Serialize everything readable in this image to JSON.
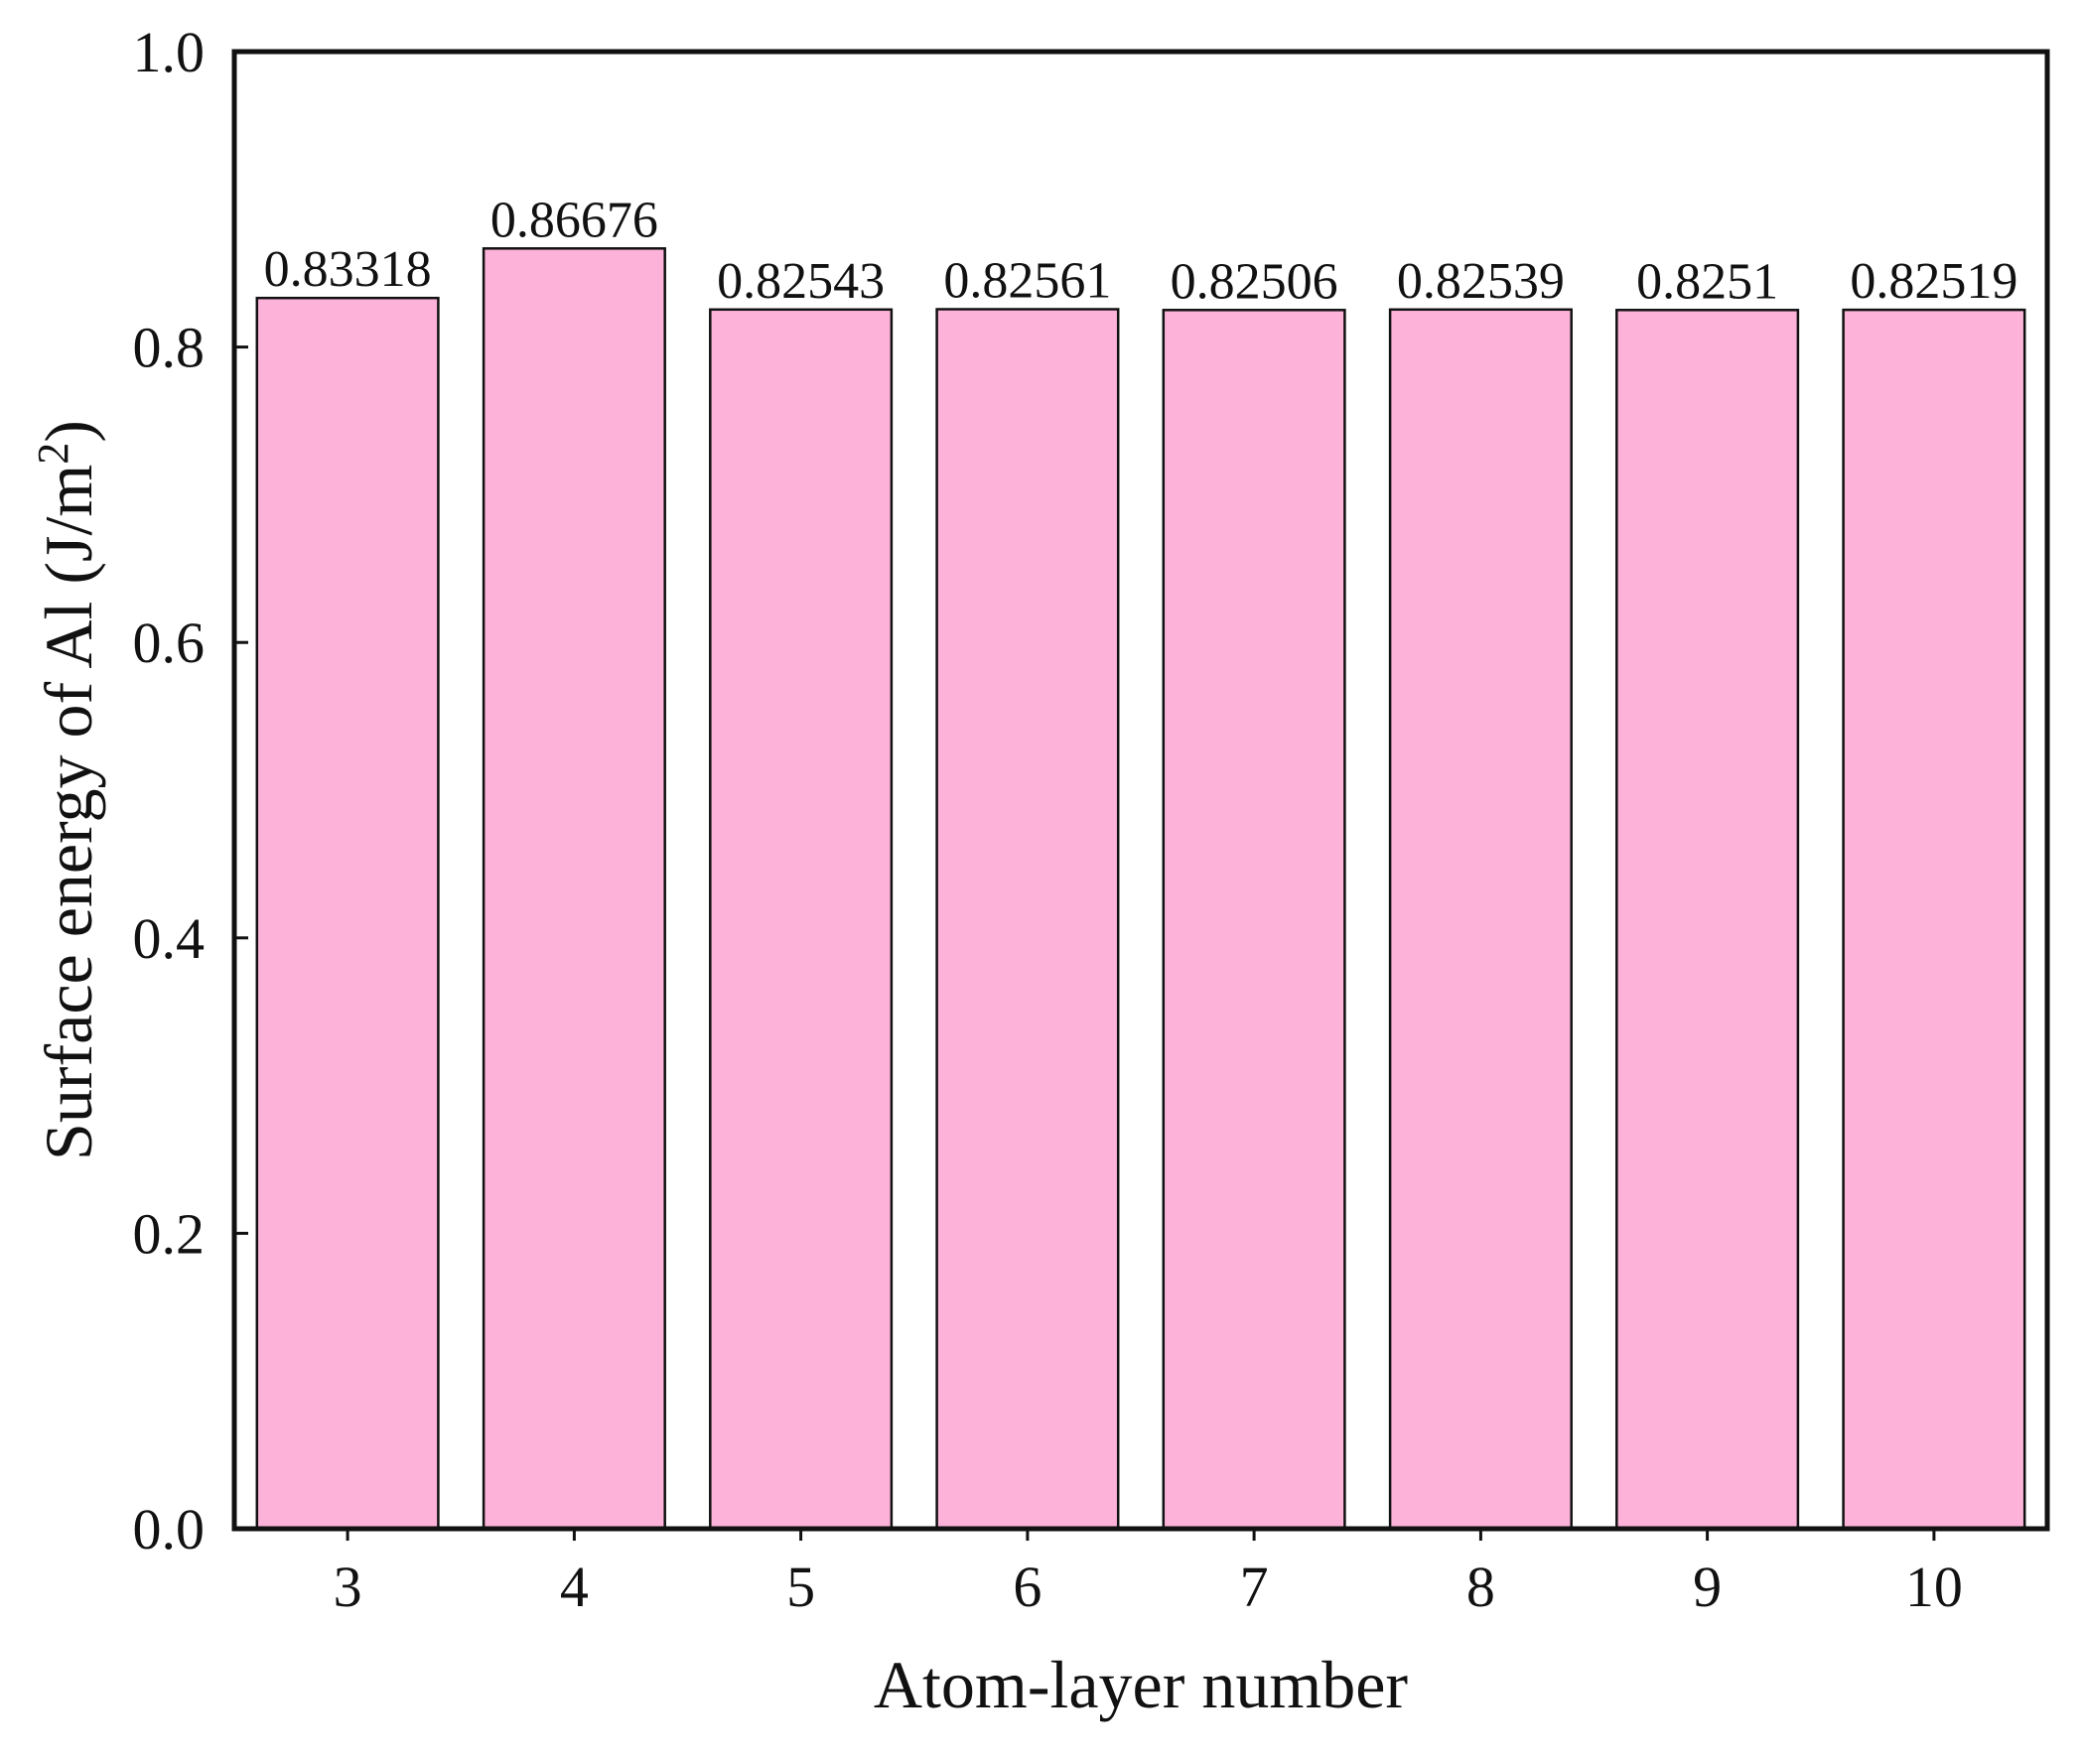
{
  "chart_data": {
    "type": "bar",
    "categories": [
      "3",
      "4",
      "5",
      "6",
      "7",
      "8",
      "9",
      "10"
    ],
    "values": [
      0.83318,
      0.86676,
      0.82543,
      0.82561,
      0.82506,
      0.82539,
      0.8251,
      0.82519
    ],
    "data_labels": [
      "0.83318",
      "0.86676",
      "0.82543",
      "0.82561",
      "0.82506",
      "0.82539",
      "0.8251",
      "0.82519"
    ],
    "title": "",
    "xlabel": "Atom-layer number",
    "ylabel": {
      "main": "Surface energy of Al (J/m",
      "superscript": "2",
      "close": ")"
    },
    "ylim": [
      0,
      1.0
    ],
    "yticks": [
      "0.0",
      "0.2",
      "0.4",
      "0.6",
      "0.8",
      "1.0"
    ],
    "grid": false,
    "legend": "none",
    "colors": {
      "bar_fill": "#fdb2da",
      "bar_stroke": "#111111",
      "axis": "#111111"
    }
  }
}
